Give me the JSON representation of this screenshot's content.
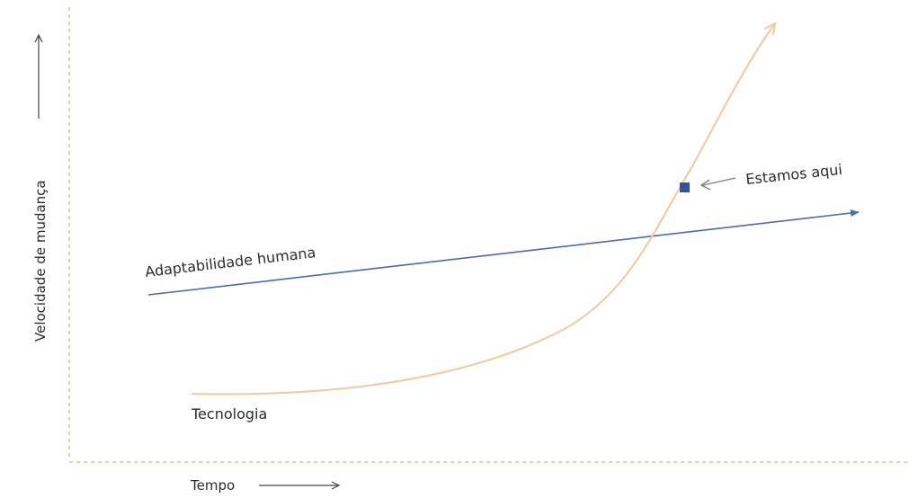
{
  "diagram": {
    "y_axis_label": "Velocidade de mudança",
    "x_axis_label": "Tempo",
    "human_line_label": "Adaptabilidade humana",
    "tech_curve_label": "Tecnologia",
    "marker_label": "Estamos aqui"
  },
  "colors": {
    "axis": "#c9cf8a",
    "human_line": "#4a6da8",
    "tech_curve": "#f0c9a0",
    "marker": "#2f5597",
    "axis_arrow": "#444444",
    "marker_arrow": "#7f7f7f"
  }
}
